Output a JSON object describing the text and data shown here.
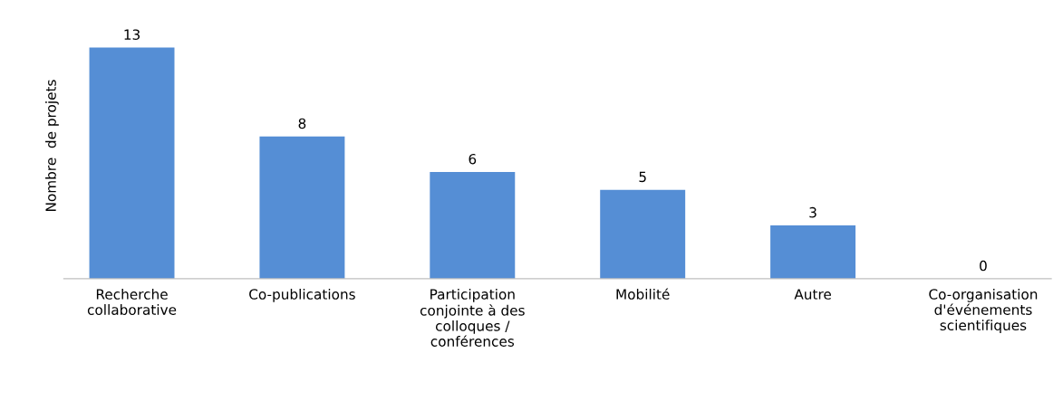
{
  "chart_data": {
    "type": "bar",
    "ylabel": "Nombre  de projets",
    "categories": [
      "Recherche\ncollaborative",
      "Co-publications",
      "Participation\nconjointe à des\ncolloques /\nconférences",
      "Mobilité",
      "Autre",
      "Co-organisation\nd'événements\nscientifiques"
    ],
    "values": [
      13,
      8,
      6,
      5,
      3,
      0
    ],
    "color": "#558ed5",
    "data_labels": true,
    "grid": false,
    "legend": false
  }
}
